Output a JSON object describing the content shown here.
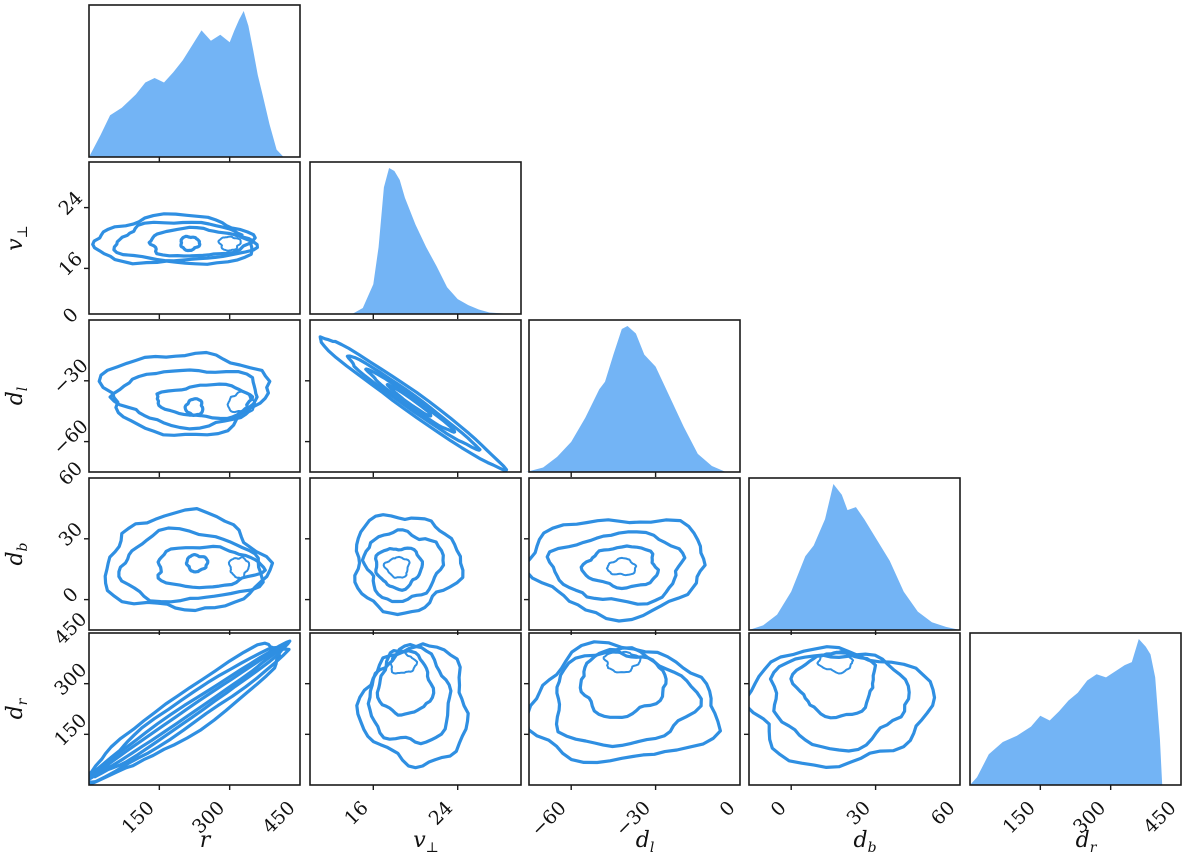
{
  "chart_data": {
    "type": "corner",
    "colors": {
      "histogram": "#73b4f5",
      "contour": "#2f8fe2",
      "axes": "#1a1a1a"
    },
    "parameters": [
      {
        "key": "r",
        "label": "r",
        "sub": "",
        "range": [
          0,
          450
        ],
        "ticks": [
          150,
          300,
          450
        ],
        "ytick_labels": []
      },
      {
        "key": "vperp",
        "label": "v",
        "sub": "⊥",
        "range": [
          10,
          30
        ],
        "ticks": [
          16,
          24
        ],
        "ytick_labels": [
          "16",
          "24"
        ]
      },
      {
        "key": "dl",
        "label": "d",
        "sub": "l",
        "range": [
          -75,
          0
        ],
        "ticks": [
          -60,
          -30,
          0
        ],
        "ytick_labels": [
          "−60",
          "−30",
          "0"
        ]
      },
      {
        "key": "db",
        "label": "d",
        "sub": "b",
        "range": [
          -15,
          60
        ],
        "ticks": [
          0,
          30,
          60
        ],
        "ytick_labels": [
          "0",
          "30",
          "60"
        ]
      },
      {
        "key": "dr",
        "label": "d",
        "sub": "r",
        "range": [
          0,
          450
        ],
        "ticks": [
          150,
          300,
          450
        ],
        "ytick_labels": [
          "150",
          "300",
          "450"
        ]
      }
    ],
    "xtick_labels": {
      "r": [
        "150",
        "300",
        "450"
      ],
      "vperp": [
        "16",
        "24"
      ],
      "dl": [
        "−60",
        "−30",
        "0"
      ],
      "db": [
        "0",
        "30",
        "60"
      ],
      "dr": [
        "150",
        "300",
        "450"
      ]
    },
    "marginals": {
      "r": {
        "x": [
          0,
          10,
          25,
          45,
          70,
          100,
          120,
          140,
          160,
          180,
          200,
          220,
          240,
          260,
          280,
          300,
          310,
          320,
          330,
          340,
          350,
          360,
          370,
          385,
          400,
          415
        ],
        "y": [
          0,
          0.06,
          0.15,
          0.28,
          0.33,
          0.42,
          0.5,
          0.53,
          0.5,
          0.57,
          0.65,
          0.75,
          0.85,
          0.78,
          0.82,
          0.77,
          0.85,
          0.92,
          0.98,
          0.88,
          0.72,
          0.55,
          0.42,
          0.22,
          0.05,
          0
        ]
      },
      "vperp": {
        "x": [
          14,
          15,
          16,
          16.5,
          17,
          17.5,
          18,
          18.5,
          19,
          20,
          21,
          22,
          23,
          24,
          25,
          26,
          27,
          29
        ],
        "y": [
          0,
          0.04,
          0.2,
          0.45,
          0.85,
          0.98,
          0.96,
          0.9,
          0.78,
          0.6,
          0.45,
          0.32,
          0.18,
          0.1,
          0.06,
          0.03,
          0.01,
          0
        ]
      },
      "dl": {
        "x": [
          -76,
          -70,
          -65,
          -60,
          -55,
          -50,
          -48,
          -45,
          -42,
          -40,
          -37,
          -34,
          -30,
          -25,
          -20,
          -15,
          -10,
          -5
        ],
        "y": [
          0,
          0.03,
          0.1,
          0.2,
          0.36,
          0.55,
          0.6,
          0.78,
          0.95,
          0.97,
          0.92,
          0.78,
          0.7,
          0.5,
          0.3,
          0.12,
          0.04,
          0
        ]
      },
      "db": {
        "x": [
          -15,
          -10,
          -5,
          0,
          5,
          8,
          12,
          15,
          18,
          20,
          23,
          26,
          30,
          35,
          40,
          45,
          50,
          55,
          60
        ],
        "y": [
          0,
          0.03,
          0.1,
          0.25,
          0.48,
          0.55,
          0.72,
          0.95,
          0.88,
          0.78,
          0.8,
          0.72,
          0.6,
          0.45,
          0.25,
          0.12,
          0.05,
          0.02,
          0
        ]
      },
      "dr": {
        "x": [
          0,
          15,
          40,
          70,
          100,
          130,
          150,
          170,
          190,
          210,
          230,
          250,
          270,
          290,
          310,
          330,
          345,
          360,
          375,
          385,
          395,
          405,
          410
        ],
        "y": [
          0,
          0.05,
          0.2,
          0.28,
          0.32,
          0.38,
          0.45,
          0.42,
          0.48,
          0.55,
          0.6,
          0.68,
          0.72,
          0.7,
          0.74,
          0.78,
          0.8,
          0.95,
          0.9,
          0.85,
          0.7,
          0.3,
          0
        ]
      }
    },
    "joint_contours": [
      {
        "row": "vperp",
        "col": "r",
        "levels": [
          {
            "cx": 185,
            "cy": 19.6,
            "rx": 170,
            "ry": 3.2
          },
          {
            "cx": 200,
            "cy": 19.5,
            "rx": 145,
            "ry": 2.5
          },
          {
            "cx": 230,
            "cy": 19.4,
            "rx": 105,
            "ry": 1.8
          },
          {
            "cx": 215,
            "cy": 19.3,
            "rx": 20,
            "ry": 0.9
          },
          {
            "cx": 300,
            "cy": 19.3,
            "rx": 22,
            "ry": 0.9
          }
        ]
      },
      {
        "row": "dl",
        "col": "r",
        "levels": [
          {
            "cx": 205,
            "cy": -36,
            "rx": 170,
            "ry": 20
          },
          {
            "cx": 215,
            "cy": -38,
            "rx": 150,
            "ry": 14
          },
          {
            "cx": 250,
            "cy": -40,
            "rx": 100,
            "ry": 8
          },
          {
            "cx": 225,
            "cy": -43,
            "rx": 18,
            "ry": 4
          },
          {
            "cx": 325,
            "cy": -41,
            "rx": 28,
            "ry": 5
          }
        ]
      },
      {
        "row": "db",
        "col": "r",
        "levels": [
          {
            "cx": 205,
            "cy": 18,
            "rx": 170,
            "ry": 24
          },
          {
            "cx": 215,
            "cy": 16,
            "rx": 150,
            "ry": 17
          },
          {
            "cx": 250,
            "cy": 16,
            "rx": 110,
            "ry": 10
          },
          {
            "cx": 230,
            "cy": 18,
            "rx": 22,
            "ry": 4
          },
          {
            "cx": 320,
            "cy": 16,
            "rx": 20,
            "ry": 5
          }
        ]
      },
      {
        "row": "dr",
        "col": "r",
        "type": "diagonal",
        "from": [
          15,
          30
        ],
        "to": [
          410,
          405
        ],
        "widths": [
          40,
          26,
          14,
          6
        ]
      },
      {
        "row": "dl",
        "col": "vperp",
        "type": "tilted",
        "cx": 19.5,
        "cy": -40,
        "levels": [
          {
            "rx": 8.5,
            "ry": 9
          },
          {
            "rx": 6,
            "ry": 6
          },
          {
            "rx": 4,
            "ry": 4
          },
          {
            "rx": 2,
            "ry": 2.2
          }
        ]
      },
      {
        "row": "db",
        "col": "vperp",
        "levels": [
          {
            "cx": 19,
            "cy": 18,
            "rx": 5,
            "ry": 24
          },
          {
            "cx": 18.8,
            "cy": 17,
            "rx": 3.6,
            "ry": 17
          },
          {
            "cx": 18.4,
            "cy": 16,
            "rx": 2.2,
            "ry": 10
          },
          {
            "cx": 18.3,
            "cy": 16,
            "rx": 1.1,
            "ry": 5
          }
        ]
      },
      {
        "row": "dr",
        "col": "vperp",
        "levels": [
          {
            "cx": 20,
            "cy": 235,
            "rx": 5,
            "ry": 175
          },
          {
            "cx": 19.5,
            "cy": 260,
            "rx": 3.8,
            "ry": 140
          },
          {
            "cx": 19,
            "cy": 300,
            "rx": 2.5,
            "ry": 95
          },
          {
            "cx": 18.8,
            "cy": 360,
            "rx": 1.2,
            "ry": 30
          }
        ]
      },
      {
        "row": "db",
        "col": "dl",
        "levels": [
          {
            "cx": -43,
            "cy": 17,
            "rx": 31,
            "ry": 24
          },
          {
            "cx": -43,
            "cy": 16,
            "rx": 23,
            "ry": 17
          },
          {
            "cx": -42,
            "cy": 16,
            "rx": 13,
            "ry": 10
          },
          {
            "cx": -42,
            "cy": 16,
            "rx": 5,
            "ry": 4
          }
        ]
      },
      {
        "row": "dr",
        "col": "dl",
        "levels": [
          {
            "cx": -42,
            "cy": 235,
            "rx": 33,
            "ry": 170
          },
          {
            "cx": -42,
            "cy": 255,
            "rx": 25,
            "ry": 140
          },
          {
            "cx": -42,
            "cy": 300,
            "rx": 15,
            "ry": 95
          },
          {
            "cx": -42,
            "cy": 365,
            "rx": 6,
            "ry": 30
          }
        ]
      },
      {
        "row": "dr",
        "col": "db",
        "levels": [
          {
            "cx": 17,
            "cy": 235,
            "rx": 32,
            "ry": 170
          },
          {
            "cx": 17,
            "cy": 255,
            "rx": 24,
            "ry": 140
          },
          {
            "cx": 16,
            "cy": 300,
            "rx": 14,
            "ry": 95
          },
          {
            "cx": 16,
            "cy": 365,
            "rx": 6,
            "ry": 30
          }
        ]
      }
    ]
  }
}
